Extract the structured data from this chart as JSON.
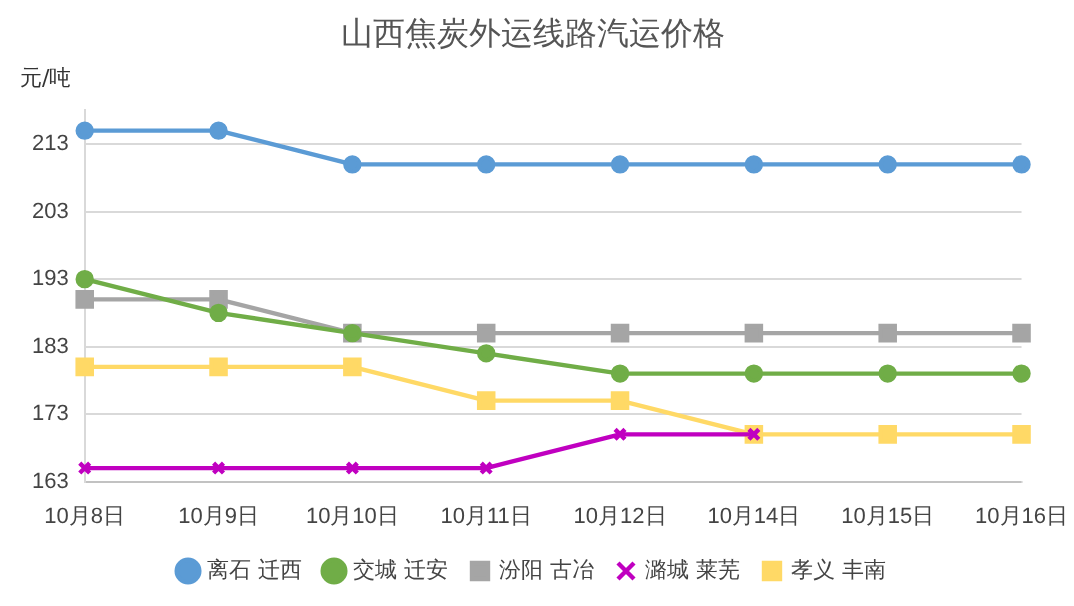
{
  "chart_data": {
    "type": "line",
    "title": "山西焦炭外运线路汽运价格",
    "ylabel": "元/吨",
    "categories": [
      "10月8日",
      "10月9日",
      "10月10日",
      "10月11日",
      "10月12日",
      "10月14日",
      "10月15日",
      "10月16日"
    ],
    "series": [
      {
        "name": "离石 迁西",
        "color": "#5b9bd5",
        "marker": "circle",
        "values": [
          215,
          215,
          210,
          210,
          210,
          210,
          210,
          210
        ]
      },
      {
        "name": "交城 迁安",
        "color": "#70ad47",
        "marker": "circle",
        "values": [
          193,
          188,
          185,
          182,
          179,
          179,
          179,
          179
        ]
      },
      {
        "name": "汾阳 古冶",
        "color": "#a5a5a5",
        "marker": "square",
        "values": [
          190,
          190,
          185,
          185,
          185,
          185,
          185,
          185
        ]
      },
      {
        "name": "潞城 莱芜",
        "color": "#c000c0",
        "marker": "cross",
        "values": [
          165,
          165,
          165,
          165,
          170,
          170,
          null,
          null
        ]
      },
      {
        "name": "孝义 丰南",
        "color": "#ffd966",
        "marker": "square",
        "values": [
          180,
          180,
          180,
          175,
          175,
          170,
          170,
          170
        ]
      }
    ],
    "ylim": [
      163,
      218
    ],
    "yticks": [
      163,
      173,
      183,
      193,
      203,
      213
    ],
    "grid": "y",
    "legend": "bottom"
  }
}
